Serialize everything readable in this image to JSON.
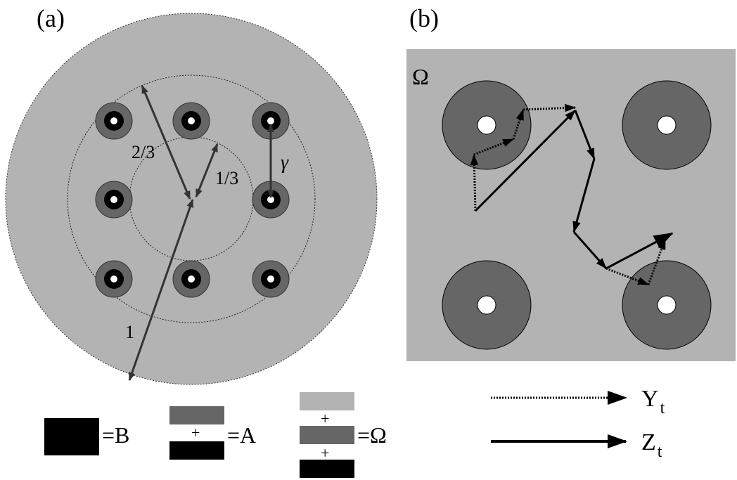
{
  "panel_a": {
    "label": "(a)",
    "radius_labels": {
      "outer": "1",
      "middle": "2/3",
      "inner": "1/3"
    },
    "gamma_label": "γ",
    "legend": {
      "plus": "+",
      "B": "=B",
      "A": "=A",
      "Omega": "=Ω"
    }
  },
  "panel_b": {
    "label": "(b)",
    "omega_label": "Ω",
    "legend": {
      "Y": {
        "main": "Y",
        "sub": "t"
      },
      "Z": {
        "main": "Z",
        "sub": "t"
      }
    }
  },
  "colors": {
    "light_gray": "#b3b3b3",
    "dark_gray": "#666666",
    "black": "#000000",
    "arrow_gray": "#333333"
  }
}
